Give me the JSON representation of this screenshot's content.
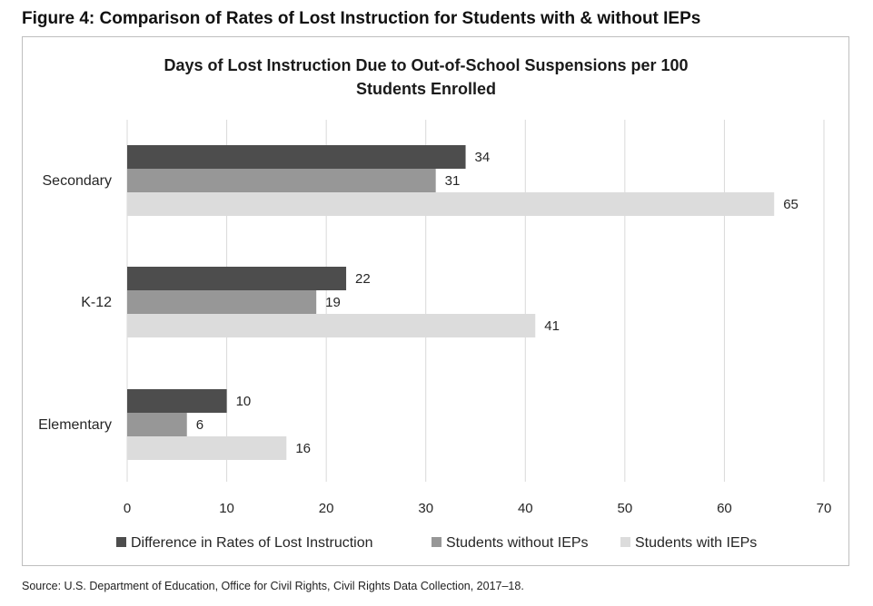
{
  "figure_title": "Figure 4: Comparison of Rates of Lost Instruction for Students with & without IEPs",
  "source": "Source: U.S. Department of Education, Office for Civil Rights, Civil Rights Data Collection, 2017–18.",
  "chart_data": {
    "type": "bar",
    "orientation": "horizontal",
    "title_lines": [
      "Days of Lost Instruction Due to Out-of-School Suspensions per 100",
      "Students Enrolled"
    ],
    "categories": [
      "Secondary",
      "K-12",
      "Elementary"
    ],
    "series": [
      {
        "name": "Difference in Rates of Lost Instruction",
        "color": "#4d4d4d",
        "values": [
          34,
          22,
          10
        ]
      },
      {
        "name": "Students without IEPs",
        "color": "#979797",
        "values": [
          31,
          19,
          6
        ]
      },
      {
        "name": "Students with IEPs",
        "color": "#dcdcdc",
        "values": [
          65,
          41,
          16
        ]
      }
    ],
    "xlim": [
      0,
      70
    ],
    "xticks": [
      0,
      10,
      20,
      30,
      40,
      50,
      60,
      70
    ],
    "grid": true,
    "legend_position": "bottom"
  }
}
